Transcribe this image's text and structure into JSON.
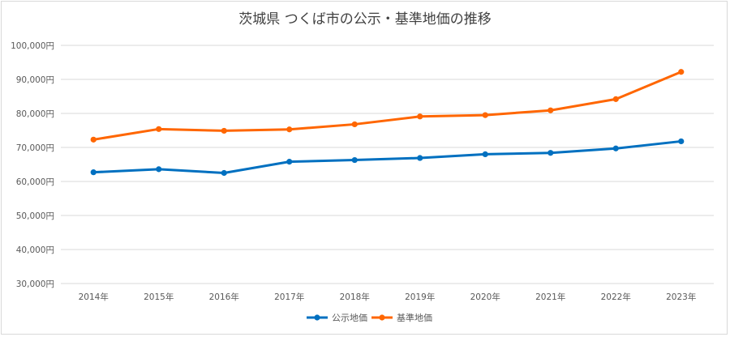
{
  "chart_data": {
    "type": "line",
    "title": "茨城県 つくば市の公示・基準地価の推移",
    "categories": [
      "2014年",
      "2015年",
      "2016年",
      "2017年",
      "2018年",
      "2019年",
      "2020年",
      "2021年",
      "2022年",
      "2023年"
    ],
    "ylim": [
      30000,
      100000
    ],
    "yticks": [
      30000,
      40000,
      50000,
      60000,
      70000,
      80000,
      90000,
      100000
    ],
    "ytick_labels": [
      "30,000円",
      "40,000円",
      "50,000円",
      "60,000円",
      "70,000円",
      "80,000円",
      "90,000円",
      "100,000円"
    ],
    "grid": true,
    "legend": "bottom",
    "series": [
      {
        "name": "公示地価",
        "color": "#0070c0",
        "values": [
          62700,
          63600,
          62500,
          65800,
          66300,
          66900,
          68000,
          68400,
          69700,
          71800
        ]
      },
      {
        "name": "基準地価",
        "color": "#ff6600",
        "values": [
          72300,
          75400,
          74900,
          75300,
          76800,
          79100,
          79500,
          80900,
          84200,
          92200
        ]
      }
    ]
  }
}
